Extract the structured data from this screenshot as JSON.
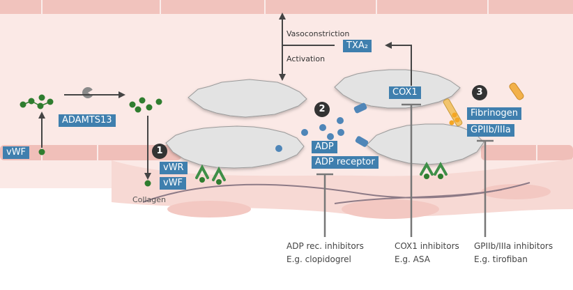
{
  "labels": {
    "vwf_left": "vWF",
    "adamts13": "ADAMTS13",
    "vwr": "vWR",
    "vwf_bound": "vWF",
    "collagen": "Collagen",
    "vasoconstriction": "Vasoconstriction",
    "activation": "Activation",
    "txa2": "TXA₂",
    "cox1": "COX1",
    "adp": "ADP",
    "adp_receptor": "ADP receptor",
    "fibrinogen": "Fibrinogen",
    "gp": "GPIIb/IIIa"
  },
  "steps": [
    "1",
    "2",
    "3"
  ],
  "inhibitors": [
    {
      "name": "ADP rec. inhibitors",
      "example": "E.g. clopidogrel"
    },
    {
      "name": "COX1 inhibitors",
      "example": "E.g. ASA"
    },
    {
      "name": "GPIIb/IIIa inhibitors",
      "example": "E.g. tirofiban"
    }
  ],
  "colors": {
    "label_bg": "#3f7fae",
    "vessel_wall": "#f1c3bd",
    "lumen": "#fbe9e6",
    "platelet": "#e3e3e3",
    "vwf_dot": "#2f7d2f",
    "receptor": "#3f8f48",
    "adp_dot": "#4f86b8"
  }
}
